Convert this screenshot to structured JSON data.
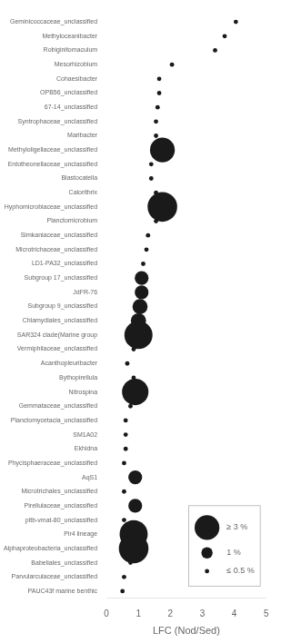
{
  "chart_data": {
    "type": "scatter",
    "categories": [
      "Geminicoccaceae_unclassified",
      "Methyloceanibacter",
      "Robiginitomaculum",
      "Mesorhizobium",
      "Cohaesibacter",
      "OPB56_unclassified",
      "67-14_unclassified",
      "Syntrophaceae_unclassified",
      "Maribacter",
      "Methyloligellaceae_unclassified",
      "Entotheonellaceae_unclassified",
      "Blastocatella",
      "Calorithrix",
      "Hyphomicrobiaceae_unclassified",
      "Planctomicrobium",
      "Simkaniaceae_unclassified",
      "Microtrichaceae_unclassified",
      "LD1-PA32_unclassified",
      "Subgroup 17_unclassified",
      "JdFR-76",
      "Subgroup 9_unclassified",
      "Chlamydiales_unclassified",
      "SAR324 clade(Marine group",
      "Vermiphilaceae_unclassified",
      "Acanthopleuribacter",
      "Bythopirellula",
      "Nitrospina",
      "Gemmataceae_unclassified",
      "Planctomycetacia_unclassified",
      "SM1A02",
      "Ekhidna",
      "Phycisphaeraceae_unclassified",
      "AqS1",
      "Microtrichales_unclassified",
      "Pirellulaceae_unclassified",
      "pltb-vmat-80_unclassified",
      "Pir4 lineage",
      "Alphaproteobacteria_unclassified",
      "Babeliales_unclassified",
      "Parvularculaceae_unclassified",
      "PAUC43f marine benthic"
    ],
    "values": [
      4.05,
      3.7,
      3.4,
      2.05,
      1.65,
      1.65,
      1.6,
      1.55,
      1.55,
      1.75,
      1.4,
      1.4,
      1.55,
      1.75,
      1.55,
      1.3,
      1.25,
      1.15,
      1.1,
      1.1,
      1.05,
      1.0,
      1.0,
      0.85,
      0.65,
      0.85,
      0.9,
      0.75,
      0.6,
      0.6,
      0.6,
      0.55,
      0.9,
      0.55,
      0.9,
      0.55,
      0.85,
      0.85,
      0.75,
      0.55,
      0.5
    ],
    "sizes": [
      0.3,
      0.3,
      0.3,
      0.5,
      0.3,
      0.3,
      0.3,
      0.3,
      0.3,
      3.5,
      0.3,
      0.3,
      0.3,
      5.0,
      0.3,
      0.3,
      0.3,
      0.3,
      1.5,
      1.5,
      1.8,
      1.8,
      4.5,
      0.5,
      0.3,
      0.3,
      4.0,
      0.3,
      0.3,
      0.3,
      0.3,
      0.3,
      1.5,
      0.3,
      1.5,
      0.3,
      4.5,
      5.0,
      0.5,
      0.3,
      0.3
    ],
    "color": "#1a1a1a",
    "xlabel": "LFC (Nod/Sed)",
    "xlim": [
      0,
      5
    ],
    "xticks": [
      0,
      1,
      2,
      3,
      4,
      5
    ],
    "grid": false,
    "legend": "lower right",
    "size_legend": {
      "labels": [
        "≥ 3 %",
        "1 %",
        "≤ 0.5 %"
      ],
      "sizes": [
        3.5,
        1.0,
        0.3
      ]
    }
  }
}
